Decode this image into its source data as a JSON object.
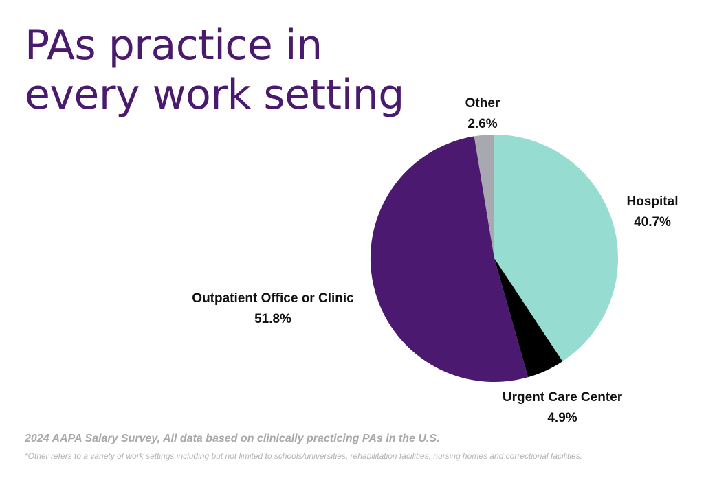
{
  "chart_data": {
    "type": "pie",
    "title_lines": [
      "PAs practice in",
      "every work setting"
    ],
    "slices": [
      {
        "label": "Hospital",
        "value": 40.7,
        "value_label": "40.7%",
        "color": "#96dcd0"
      },
      {
        "label": "Urgent Care Center",
        "value": 4.9,
        "value_label": "4.9%",
        "color": "#000000"
      },
      {
        "label": "Outpatient Office or Clinic",
        "value": 51.8,
        "value_label": "51.8%",
        "color": "#4b1a70"
      },
      {
        "label": "Other",
        "value": 2.6,
        "value_label": "2.6%",
        "color": "#a7a8b0"
      }
    ],
    "start": "top",
    "direction": "clockwise"
  },
  "source_note": "2024 AAPA Salary Survey, All data based on clinically practicing PAs in the U.S.",
  "footnote": "*Other refers to a variety of work settings including but not limited to schools/universities, rehabilitation facilities, nursing homes and correctional facilities."
}
